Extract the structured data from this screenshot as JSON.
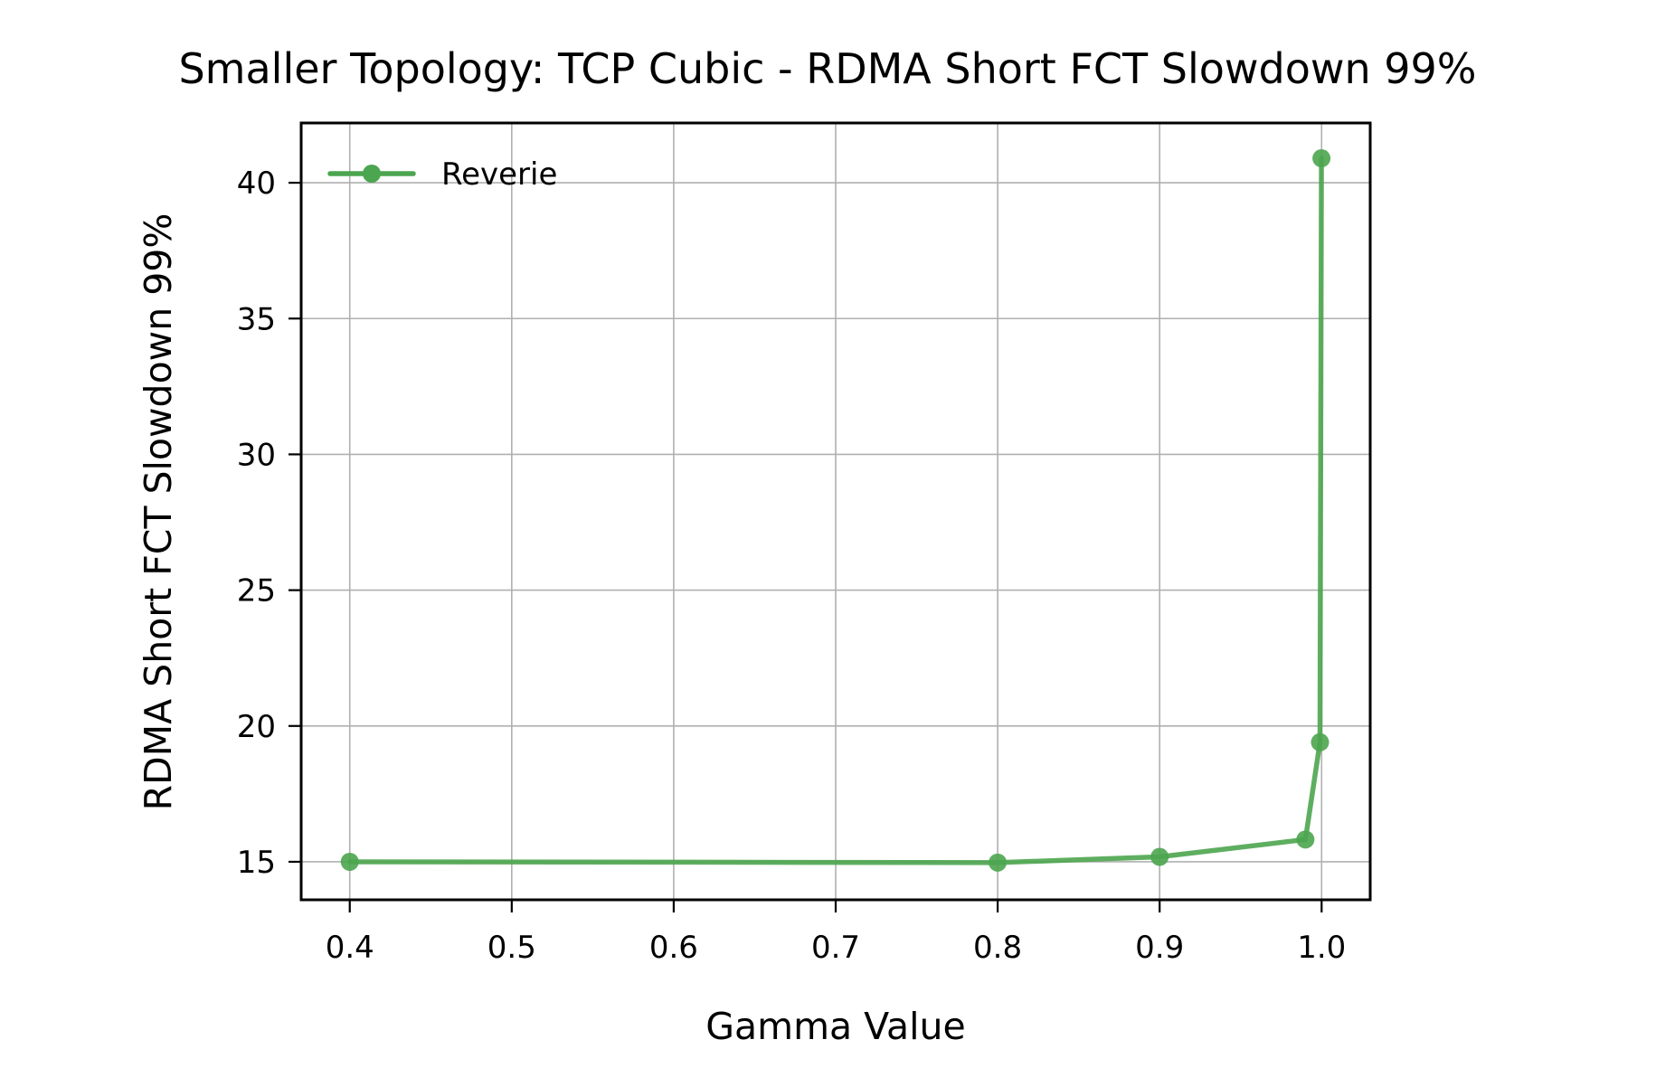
{
  "chart_data": {
    "type": "line",
    "title": "Smaller Topology: TCP Cubic - RDMA Short FCT Slowdown 99%",
    "xlabel": "Gamma Value",
    "ylabel": "RDMA Short FCT Slowdown 99%",
    "xlim": [
      0.37,
      1.03
    ],
    "ylim": [
      13.6,
      42.2
    ],
    "xticks": [
      0.4,
      0.5,
      0.6,
      0.7,
      0.8,
      0.9,
      1.0
    ],
    "xtick_labels": [
      "0.4",
      "0.5",
      "0.6",
      "0.7",
      "0.8",
      "0.9",
      "1.0"
    ],
    "yticks": [
      15,
      20,
      25,
      30,
      35,
      40
    ],
    "ytick_labels": [
      "15",
      "20",
      "25",
      "30",
      "35",
      "40"
    ],
    "grid": true,
    "legend_position": "top-left",
    "series": [
      {
        "name": "Reverie",
        "color": "#4ca54f",
        "marker": "circle",
        "x": [
          0.4,
          0.8,
          0.9,
          0.99,
          0.999,
          0.9999
        ],
        "y": [
          15.0,
          14.97,
          15.18,
          15.82,
          19.4,
          40.9
        ]
      }
    ]
  }
}
